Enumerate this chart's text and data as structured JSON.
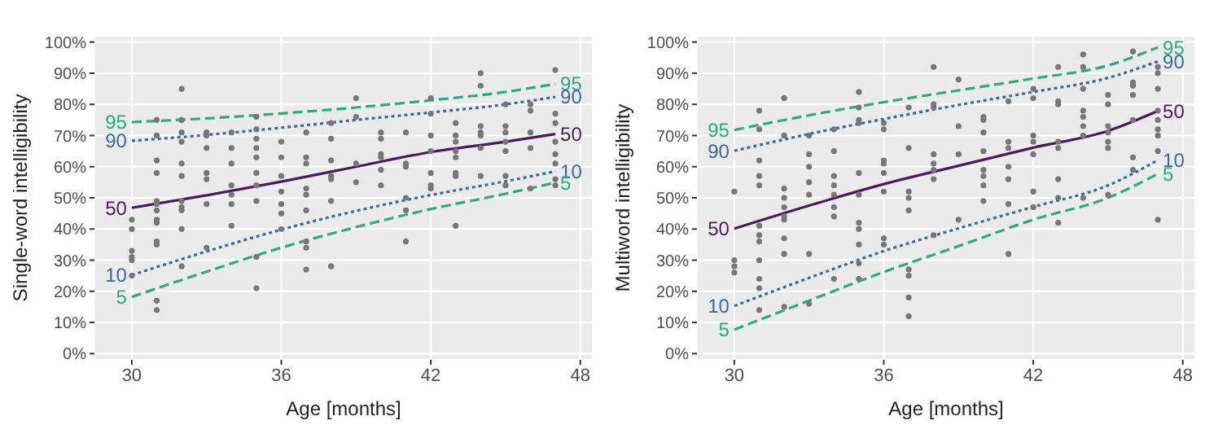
{
  "chart_data": [
    {
      "type": "scatter",
      "xlabel": "Age [months]",
      "ylabel": "Single-word intelligibility",
      "xlim": [
        28.5,
        48.5
      ],
      "xticks": [
        30,
        36,
        42,
        48
      ],
      "ylim": [
        -2,
        102
      ],
      "yticks": [
        {
          "value": 0,
          "label": "0%"
        },
        {
          "value": 10,
          "label": "10%"
        },
        {
          "value": 20,
          "label": "20%"
        },
        {
          "value": 30,
          "label": "30%"
        },
        {
          "value": 40,
          "label": "40%"
        },
        {
          "value": 50,
          "label": "50%"
        },
        {
          "value": 60,
          "label": "60%"
        },
        {
          "value": 70,
          "label": "70%"
        },
        {
          "value": 80,
          "label": "80%"
        },
        {
          "value": 90,
          "label": "90%"
        },
        {
          "value": 100,
          "label": "100%"
        }
      ],
      "grid": true,
      "legend": false,
      "series": [
        {
          "color": "#777777",
          "x": [
            30,
            30,
            30,
            30,
            30,
            30,
            31,
            31,
            31,
            31,
            31,
            31,
            31,
            31,
            31,
            31,
            31,
            31,
            31,
            32,
            32,
            32,
            32,
            32,
            32,
            32,
            32,
            32,
            32,
            32,
            33,
            33,
            33,
            33,
            33,
            33,
            33,
            34,
            34,
            34,
            34,
            34,
            34,
            34,
            35,
            35,
            35,
            35,
            35,
            35,
            35,
            35,
            35,
            35,
            36,
            36,
            36,
            36,
            36,
            36,
            36,
            37,
            37,
            37,
            37,
            37,
            37,
            37,
            37,
            37,
            38,
            38,
            38,
            38,
            38,
            38,
            38,
            39,
            39,
            39,
            39,
            40,
            40,
            40,
            40,
            40,
            40,
            41,
            41,
            41,
            41,
            41,
            41,
            42,
            42,
            42,
            42,
            42,
            42,
            42,
            43,
            43,
            43,
            43,
            43,
            43,
            43,
            43,
            44,
            44,
            44,
            44,
            44,
            44,
            44,
            45,
            45,
            45,
            45,
            45,
            45,
            45,
            46,
            46,
            46,
            46,
            46,
            47,
            47,
            47,
            47,
            47,
            47,
            47,
            47
          ],
          "values": [
            43,
            40,
            33,
            31,
            30,
            25,
            75,
            70,
            62,
            58,
            49,
            48,
            46,
            43,
            42,
            36,
            35,
            17,
            14,
            85,
            75,
            71,
            68,
            61,
            57,
            49,
            47,
            46,
            40,
            28,
            71,
            70,
            66,
            58,
            56,
            48,
            34,
            71,
            66,
            61,
            54,
            51,
            48,
            41,
            76,
            72,
            69,
            66,
            63,
            58,
            54,
            49,
            31,
            21,
            68,
            63,
            57,
            52,
            48,
            45,
            40,
            71,
            63,
            61,
            53,
            51,
            46,
            36,
            34,
            27,
            74,
            69,
            62,
            57,
            56,
            49,
            28,
            82,
            76,
            61,
            55,
            71,
            69,
            64,
            63,
            59,
            54,
            71,
            61,
            60,
            50,
            46,
            36,
            82,
            77,
            70,
            65,
            58,
            54,
            53,
            74,
            70,
            68,
            65,
            63,
            58,
            57,
            41,
            90,
            86,
            73,
            71,
            70,
            66,
            57,
            80,
            73,
            71,
            68,
            65,
            57,
            54,
            80,
            78,
            71,
            66,
            53,
            91,
            77,
            74,
            68,
            64,
            61,
            56,
            54
          ]
        },
        {
          "type": "line",
          "name": "95",
          "color": "#27ad81",
          "line_style": "dashed",
          "marker": "none",
          "x": [
            30,
            33,
            36,
            39,
            42,
            45,
            47
          ],
          "values": [
            74.3,
            75.5,
            77.1,
            79,
            81.3,
            84,
            86.6
          ]
        },
        {
          "type": "line",
          "name": "90",
          "color": "#3b6b9a",
          "line_style": "dotted",
          "marker": "none",
          "x": [
            30,
            33,
            36,
            39,
            42,
            45,
            47
          ],
          "values": [
            68.3,
            70.2,
            72.5,
            75,
            77.4,
            80,
            82.4
          ]
        },
        {
          "type": "line",
          "name": "50",
          "color": "#4b1a5c",
          "line_style": "solid",
          "marker": "none",
          "x": [
            30,
            33,
            36,
            39,
            42,
            45,
            47
          ],
          "values": [
            46.8,
            50.8,
            55.2,
            60,
            64.7,
            68,
            70.5
          ]
        },
        {
          "type": "line",
          "name": "10",
          "color": "#3b6b9a",
          "line_style": "dotted",
          "marker": "none",
          "x": [
            30,
            33,
            36,
            39,
            42,
            45,
            47
          ],
          "values": [
            25.2,
            32.8,
            39.8,
            45.8,
            50.9,
            55.3,
            58.5
          ]
        },
        {
          "type": "line",
          "name": "5",
          "color": "#27ad81",
          "line_style": "dashed",
          "marker": "none",
          "x": [
            30,
            33,
            36,
            39,
            42,
            45,
            47
          ],
          "values": [
            18.2,
            26.3,
            34,
            40.6,
            46.4,
            51.3,
            54.9
          ]
        }
      ]
    },
    {
      "type": "scatter",
      "xlabel": "Age [months]",
      "ylabel": "Multiword intelligibility",
      "xlim": [
        28.5,
        48.5
      ],
      "xticks": [
        30,
        36,
        42,
        48
      ],
      "ylim": [
        -2,
        102
      ],
      "yticks": [
        {
          "value": 0,
          "label": "0%"
        },
        {
          "value": 10,
          "label": "10%"
        },
        {
          "value": 20,
          "label": "20%"
        },
        {
          "value": 30,
          "label": "30%"
        },
        {
          "value": 40,
          "label": "40%"
        },
        {
          "value": 50,
          "label": "50%"
        },
        {
          "value": 60,
          "label": "60%"
        },
        {
          "value": 70,
          "label": "70%"
        },
        {
          "value": 80,
          "label": "80%"
        },
        {
          "value": 90,
          "label": "90%"
        },
        {
          "value": 100,
          "label": "100%"
        }
      ],
      "grid": true,
      "legend": false,
      "series": [
        {
          "color": "#777777",
          "x": [
            30,
            30,
            30,
            30,
            31,
            31,
            31,
            31,
            31,
            31,
            31,
            31,
            31,
            31,
            31,
            31,
            32,
            32,
            32,
            32,
            32,
            32,
            32,
            32,
            32,
            32,
            33,
            33,
            33,
            33,
            33,
            33,
            33,
            34,
            34,
            34,
            34,
            34,
            34,
            34,
            34,
            35,
            35,
            35,
            35,
            35,
            35,
            35,
            35,
            35,
            35,
            35,
            36,
            36,
            36,
            36,
            36,
            36,
            36,
            36,
            37,
            37,
            37,
            37,
            37,
            37,
            37,
            37,
            37,
            38,
            38,
            38,
            38,
            38,
            38,
            38,
            38,
            39,
            39,
            39,
            39,
            40,
            40,
            40,
            40,
            40,
            40,
            40,
            40,
            41,
            41,
            41,
            41,
            41,
            41,
            41,
            42,
            42,
            42,
            42,
            42,
            42,
            42,
            43,
            43,
            43,
            43,
            43,
            43,
            43,
            43,
            44,
            44,
            44,
            44,
            44,
            44,
            44,
            44,
            45,
            45,
            45,
            45,
            45,
            45,
            45,
            46,
            46,
            46,
            46,
            46,
            46,
            46,
            47,
            47,
            47,
            47,
            47,
            47,
            47,
            47,
            47
          ],
          "values": [
            52,
            30,
            28,
            26,
            78,
            72,
            62,
            57,
            54,
            41,
            38,
            36,
            30,
            24,
            21,
            14,
            82,
            70,
            53,
            50,
            47,
            44,
            43,
            37,
            32,
            15,
            70,
            64,
            60,
            55,
            51,
            32,
            16,
            72,
            65,
            57,
            54,
            51,
            47,
            44,
            24,
            84,
            79,
            75,
            74,
            58,
            51,
            42,
            40,
            35,
            29,
            24,
            74,
            72,
            62,
            61,
            58,
            52,
            37,
            35,
            79,
            66,
            52,
            50,
            46,
            27,
            25,
            18,
            12,
            92,
            80,
            79,
            64,
            61,
            59,
            56,
            38,
            88,
            73,
            64,
            43,
            76,
            75,
            71,
            65,
            59,
            57,
            54,
            49,
            81,
            68,
            66,
            60,
            56,
            48,
            32,
            85,
            82,
            70,
            68,
            64,
            52,
            47,
            92,
            81,
            80,
            68,
            66,
            56,
            50,
            42,
            96,
            92,
            85,
            78,
            76,
            73,
            70,
            50,
            83,
            80,
            73,
            71,
            68,
            66,
            51,
            97,
            87,
            86,
            83,
            75,
            63,
            59,
            92,
            90,
            85,
            78,
            75,
            72,
            70,
            65,
            43
          ]
        },
        {
          "type": "line",
          "name": "95",
          "color": "#27ad81",
          "line_style": "dashed",
          "marker": "none",
          "x": [
            30,
            33,
            36,
            39,
            42,
            45,
            47
          ],
          "values": [
            71.8,
            76.5,
            80.7,
            84.5,
            88.3,
            92.5,
            98.3
          ]
        },
        {
          "type": "line",
          "name": "90",
          "color": "#3b6b9a",
          "line_style": "dotted",
          "marker": "none",
          "x": [
            30,
            33,
            36,
            39,
            42,
            45,
            47
          ],
          "values": [
            65.1,
            70.5,
            75.3,
            79.8,
            84,
            88.5,
            93.8
          ]
        },
        {
          "type": "line",
          "name": "50",
          "color": "#4b1a5c",
          "line_style": "solid",
          "marker": "none",
          "x": [
            30,
            33,
            36,
            39,
            42,
            45,
            47
          ],
          "values": [
            40.1,
            47.5,
            54.4,
            60.3,
            66.1,
            71.5,
            77.9
          ]
        },
        {
          "type": "line",
          "name": "10",
          "color": "#3b6b9a",
          "line_style": "dotted",
          "marker": "none",
          "x": [
            30,
            33,
            36,
            39,
            42,
            45,
            47
          ],
          "values": [
            15.3,
            24.3,
            32.9,
            40.2,
            47.1,
            54,
            62.1
          ]
        },
        {
          "type": "line",
          "name": "5",
          "color": "#27ad81",
          "line_style": "dashed",
          "marker": "none",
          "x": [
            30,
            33,
            36,
            39,
            42,
            45,
            47
          ],
          "values": [
            7.7,
            17,
            26.2,
            34.5,
            43,
            50,
            57.7
          ]
        }
      ]
    }
  ]
}
